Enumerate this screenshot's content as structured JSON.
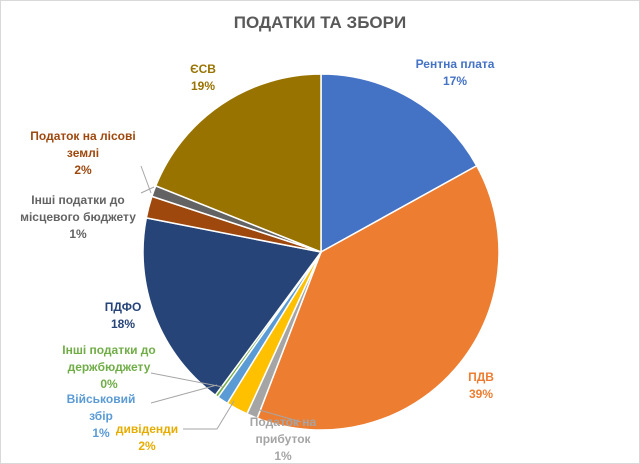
{
  "chart_data": {
    "type": "pie",
    "title": "ПОДАТКИ ТА ЗБОРИ",
    "slices": [
      {
        "label": [
          "Рентна плата"
        ],
        "pct_label": "17%",
        "value": 17,
        "color": "#4472c4"
      },
      {
        "label": [
          "ПДВ"
        ],
        "pct_label": "39%",
        "value": 39,
        "color": "#ed7d31"
      },
      {
        "label": [
          "Податок на",
          "прибуток"
        ],
        "pct_label": "1%",
        "value": 1,
        "color": "#a5a5a5"
      },
      {
        "label": [
          "дивіденди"
        ],
        "pct_label": "2%",
        "value": 2,
        "color": "#ffc000"
      },
      {
        "label": [
          "Військовий",
          "збір"
        ],
        "pct_label": "1%",
        "value": 1,
        "color": "#5b9bd5"
      },
      {
        "label": [
          "Інші податки  до",
          "держбюджету"
        ],
        "pct_label": "0%",
        "value": 0.3,
        "color": "#70ad47"
      },
      {
        "label": [
          "ПДФО"
        ],
        "pct_label": "18%",
        "value": 18,
        "color": "#264478"
      },
      {
        "label": [
          "Податок на лісові",
          "землі"
        ],
        "pct_label": "2%",
        "value": 2,
        "color": "#9e480e"
      },
      {
        "label": [
          "Інші податки до",
          "місцевого бюджету"
        ],
        "pct_label": "1%",
        "value": 1,
        "color": "#636363"
      },
      {
        "label": [
          "ЄСВ"
        ],
        "pct_label": "19%",
        "value": 19,
        "color": "#997300"
      }
    ]
  }
}
